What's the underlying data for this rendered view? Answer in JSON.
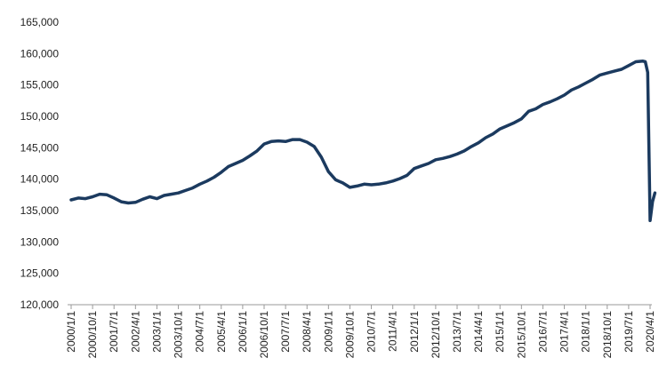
{
  "chart_data": {
    "type": "line",
    "title": "",
    "xlabel": "",
    "ylabel": "",
    "ylim": [
      120000,
      165000
    ],
    "y_ticks": [
      "120,000",
      "125,000",
      "130,000",
      "135,000",
      "140,000",
      "145,000",
      "150,000",
      "155,000",
      "160,000",
      "165,000"
    ],
    "y_tick_values": [
      120000,
      125000,
      130000,
      135000,
      140000,
      145000,
      150000,
      155000,
      160000,
      165000
    ],
    "x_ticks": [
      "2000/1/1",
      "2000/10/1",
      "2001/7/1",
      "2002/4/1",
      "2003/1/1",
      "2003/10/1",
      "2004/7/1",
      "2005/4/1",
      "2006/1/1",
      "2006/10/1",
      "2007/7/1",
      "2008/4/1",
      "2009/1/1",
      "2009/10/1",
      "2010/7/1",
      "2011/4/1",
      "2012/1/1",
      "2012/10/1",
      "2013/7/1",
      "2014/4/1",
      "2015/1/1",
      "2015/10/1",
      "2016/7/1",
      "2017/4/1",
      "2018/1/1",
      "2018/10/1",
      "2019/7/1",
      "2020/4/1"
    ],
    "grid": false,
    "line_color": "#1b3a5f",
    "series": [
      {
        "x": [
          "2000/1/1",
          "2000/4/1",
          "2000/7/1",
          "2000/10/1",
          "2001/1/1",
          "2001/4/1",
          "2001/7/1",
          "2001/10/1",
          "2002/1/1",
          "2002/4/1",
          "2002/7/1",
          "2002/10/1",
          "2003/1/1",
          "2003/4/1",
          "2003/7/1",
          "2003/10/1",
          "2004/1/1",
          "2004/4/1",
          "2004/7/1",
          "2004/10/1",
          "2005/1/1",
          "2005/4/1",
          "2005/7/1",
          "2005/10/1",
          "2006/1/1",
          "2006/4/1",
          "2006/7/1",
          "2006/10/1",
          "2007/1/1",
          "2007/4/1",
          "2007/7/1",
          "2007/10/1",
          "2008/1/1",
          "2008/4/1",
          "2008/7/1",
          "2008/10/1",
          "2009/1/1",
          "2009/4/1",
          "2009/7/1",
          "2009/10/1",
          "2010/1/1",
          "2010/4/1",
          "2010/7/1",
          "2010/10/1",
          "2011/1/1",
          "2011/4/1",
          "2011/7/1",
          "2011/10/1",
          "2012/1/1",
          "2012/4/1",
          "2012/7/1",
          "2012/10/1",
          "2013/1/1",
          "2013/4/1",
          "2013/7/1",
          "2013/10/1",
          "2014/1/1",
          "2014/4/1",
          "2014/7/1",
          "2014/10/1",
          "2015/1/1",
          "2015/4/1",
          "2015/7/1",
          "2015/10/1",
          "2016/1/1",
          "2016/4/1",
          "2016/7/1",
          "2016/10/1",
          "2017/1/1",
          "2017/4/1",
          "2017/7/1",
          "2017/10/1",
          "2018/1/1",
          "2018/4/1",
          "2018/7/1",
          "2018/10/1",
          "2019/1/1",
          "2019/4/1",
          "2019/7/1",
          "2019/10/1",
          "2020/1/1",
          "2020/2/1",
          "2020/3/1",
          "2020/4/1",
          "2020/5/1",
          "2020/6/1"
        ],
        "values": [
          136700,
          137000,
          136900,
          137200,
          137600,
          137500,
          137000,
          136400,
          136200,
          136300,
          136800,
          137200,
          136900,
          137400,
          137600,
          137800,
          138200,
          138600,
          139200,
          139700,
          140300,
          141100,
          142000,
          142500,
          143000,
          143700,
          144500,
          145600,
          146000,
          146100,
          146000,
          146300,
          146300,
          145900,
          145200,
          143500,
          141200,
          139900,
          139400,
          138700,
          138900,
          139200,
          139100,
          139200,
          139400,
          139700,
          140100,
          140600,
          141700,
          142100,
          142500,
          143100,
          143300,
          143600,
          144000,
          144500,
          145200,
          145800,
          146600,
          147200,
          148000,
          148500,
          149000,
          149600,
          150800,
          151200,
          151900,
          152300,
          152800,
          153400,
          154200,
          154700,
          155300,
          155900,
          156600,
          156900,
          157200,
          157500,
          158100,
          158700,
          158800,
          158700,
          157000,
          133400,
          136400,
          137800
        ]
      }
    ]
  }
}
